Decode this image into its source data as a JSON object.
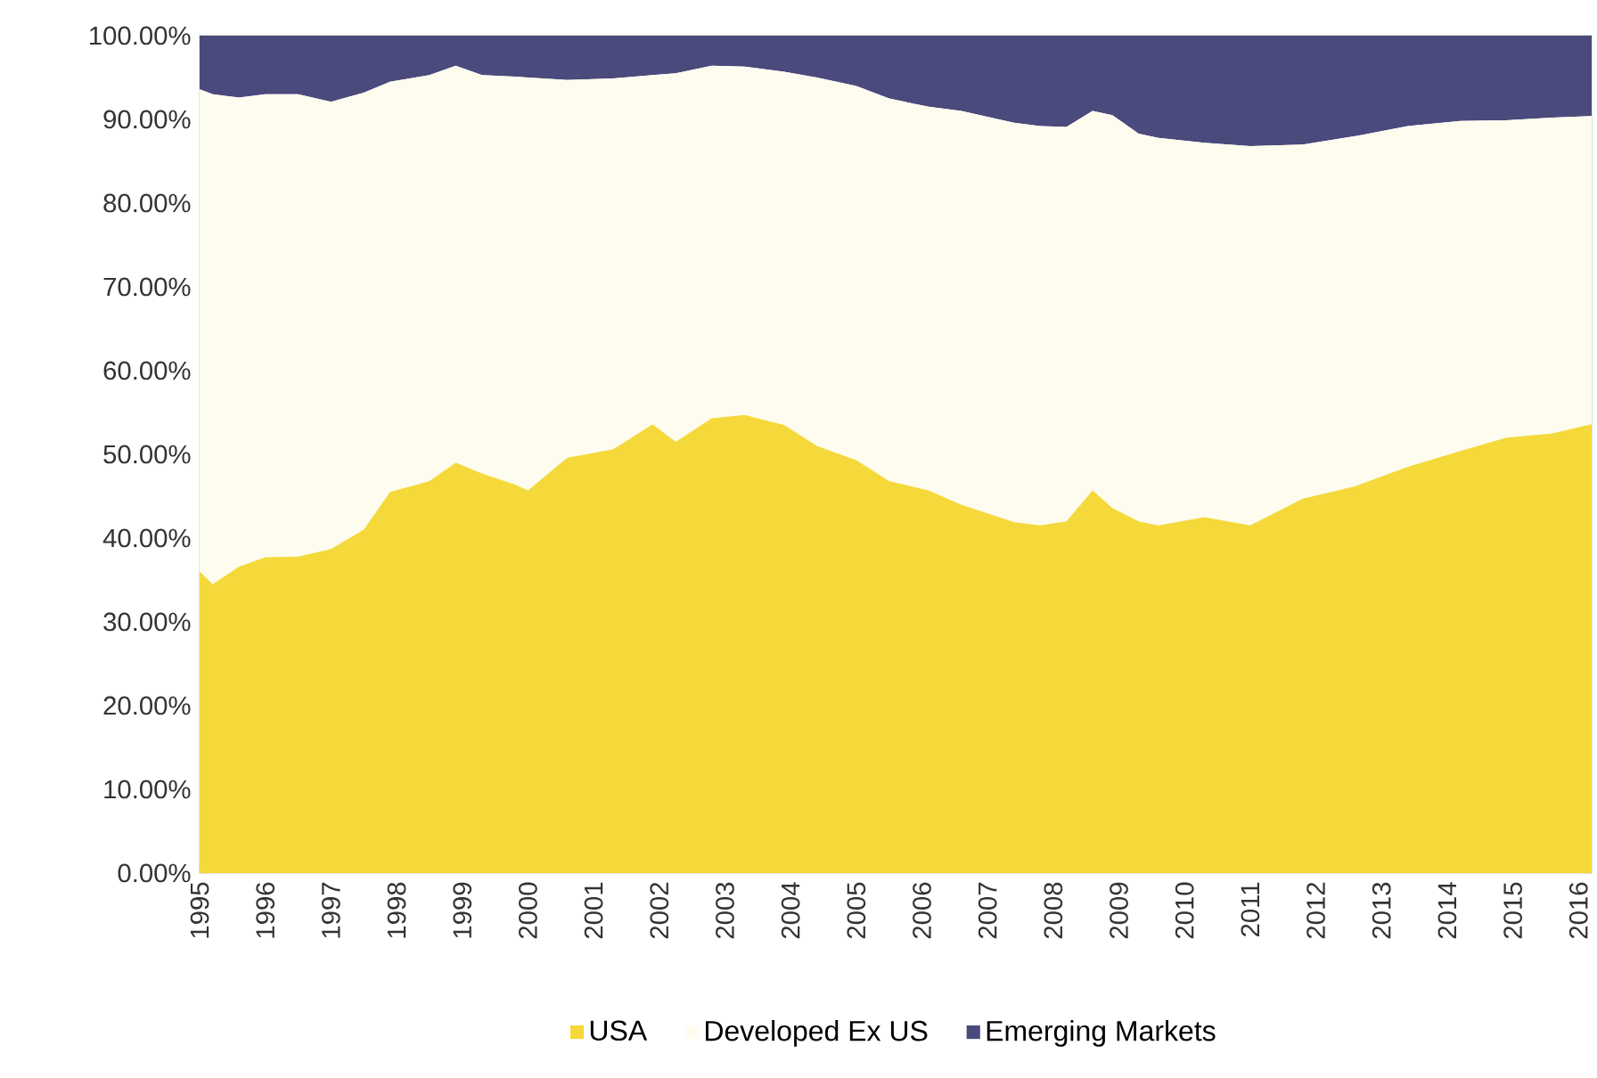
{
  "chart_data": {
    "type": "area",
    "stacked": true,
    "legend": "bottom",
    "grid": false,
    "x": [
      1995.0,
      1995.2,
      1995.6,
      1996.0,
      1996.5,
      1997.0,
      1997.5,
      1997.9,
      1998.5,
      1998.9,
      1999.3,
      1999.8,
      2000.0,
      2000.6,
      2001.3,
      2001.9,
      2002.25,
      2002.8,
      2003.3,
      2003.9,
      2004.4,
      2005.0,
      2005.5,
      2006.1,
      2006.6,
      2007.4,
      2007.8,
      2008.2,
      2008.6,
      2008.9,
      2009.3,
      2009.6,
      2010.3,
      2011.0,
      2011.8,
      2012.6,
      2013.4,
      2014.2,
      2014.9,
      2015.6,
      2016.2
    ],
    "series": [
      {
        "name": "USA",
        "color": "#f5d93a",
        "values": [
          36,
          34.5,
          36.6,
          37.7,
          37.8,
          38.7,
          41,
          45.5,
          46.8,
          49,
          47.7,
          46.4,
          45.7,
          49.6,
          50.6,
          53.6,
          51.5,
          54.3,
          54.7,
          53.5,
          51,
          49.3,
          46.8,
          45.7,
          44,
          41.9,
          41.5,
          42,
          45.7,
          43.6,
          42,
          41.5,
          42.5,
          41.5,
          44.7,
          46.2,
          48.5,
          50.4,
          52,
          52.5,
          53.6
        ]
      },
      {
        "name": "Developed Ex US",
        "color": "#fdfcef",
        "values": [
          57.6,
          58.5,
          56,
          55.3,
          55.2,
          53.4,
          52.2,
          49,
          48.5,
          47.4,
          47.6,
          48.7,
          49.3,
          45.1,
          44.3,
          41.7,
          44,
          42.1,
          41.6,
          42.2,
          44,
          44.7,
          45.7,
          45.8,
          47,
          47.7,
          47.7,
          47.1,
          45.3,
          46.9,
          46.3,
          46.3,
          44.7,
          45.3,
          42.3,
          41.8,
          40.7,
          39.4,
          37.9,
          37.7,
          36.8
        ]
      },
      {
        "name": "Emerging Markets",
        "color": "#4a4a7c",
        "values": [
          6.4,
          7,
          7.4,
          7,
          7,
          7.9,
          6.8,
          5.5,
          4.7,
          3.6,
          4.7,
          4.9,
          5,
          5.3,
          5.1,
          4.7,
          4.5,
          3.6,
          3.7,
          4.3,
          5,
          6,
          7.5,
          8.5,
          9,
          10.4,
          10.8,
          10.9,
          9,
          9.5,
          11.7,
          12.2,
          12.8,
          13.2,
          13,
          12,
          10.8,
          10.2,
          10.1,
          9.8,
          9.6
        ]
      }
    ],
    "xlim": [
      1995,
      2016.2
    ],
    "xticks": [
      1995,
      1996,
      1997,
      1998,
      1999,
      2000,
      2001,
      2002,
      2003,
      2004,
      2005,
      2006,
      2007,
      2008,
      2009,
      2010,
      2011,
      2012,
      2013,
      2014,
      2015,
      2016
    ],
    "ylim": [
      0,
      100
    ],
    "yticks": [
      {
        "value": 0,
        "label": "0.00%"
      },
      {
        "value": 10,
        "label": "10.00%"
      },
      {
        "value": 20,
        "label": "20.00%"
      },
      {
        "value": 30,
        "label": "30.00%"
      },
      {
        "value": 40,
        "label": "40.00%"
      },
      {
        "value": 50,
        "label": "50.00%"
      },
      {
        "value": 60,
        "label": "60.00%"
      },
      {
        "value": 70,
        "label": "70.00%"
      },
      {
        "value": 80,
        "label": "80.00%"
      },
      {
        "value": 90,
        "label": "90.00%"
      },
      {
        "value": 100,
        "label": "100.00%"
      }
    ]
  }
}
